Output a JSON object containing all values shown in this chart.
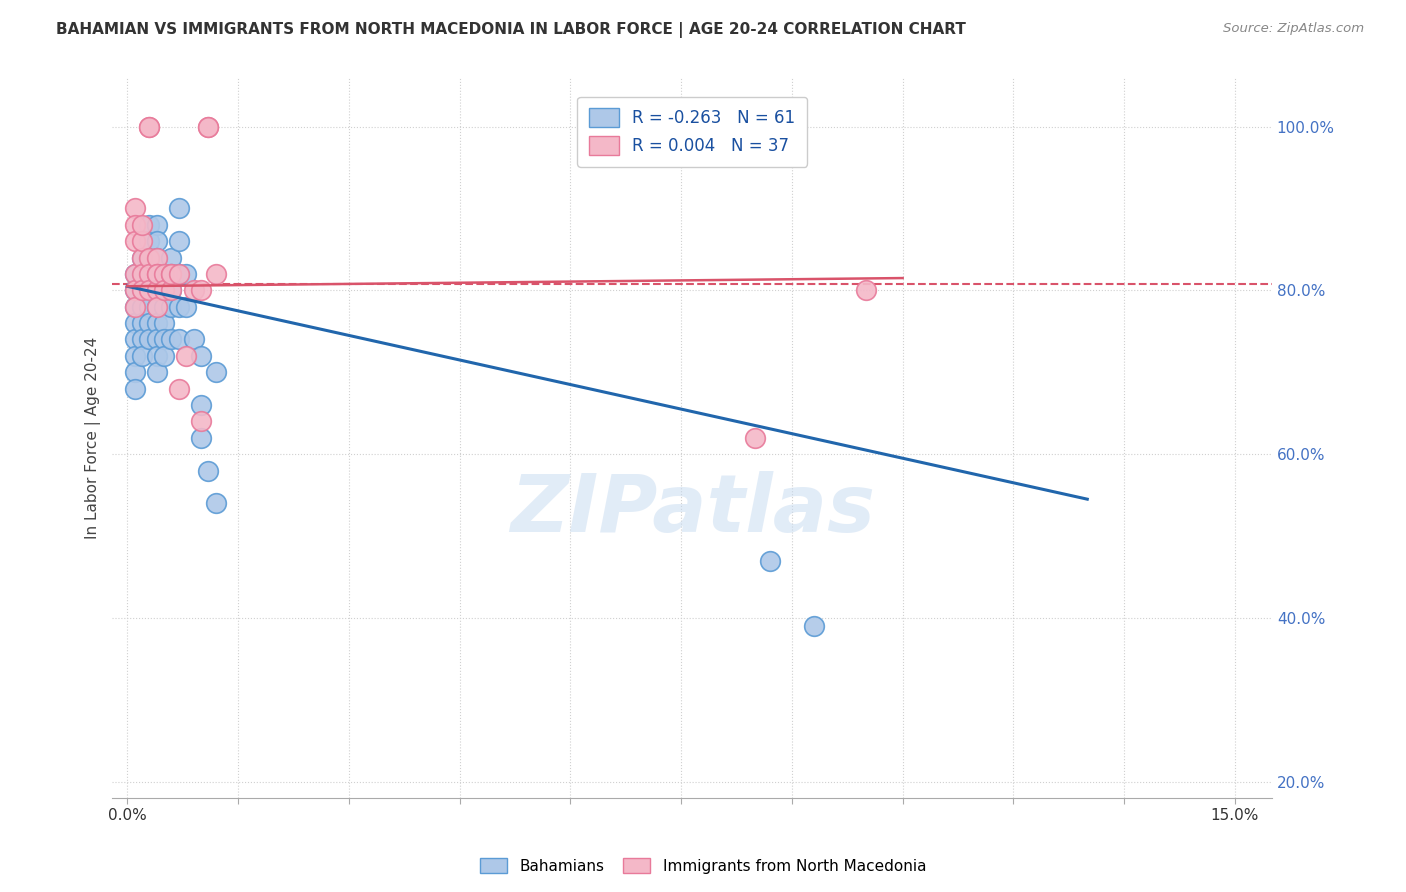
{
  "title": "BAHAMIAN VS IMMIGRANTS FROM NORTH MACEDONIA IN LABOR FORCE | AGE 20-24 CORRELATION CHART",
  "source": "Source: ZipAtlas.com",
  "xlabel_vals": [
    0.0,
    0.015,
    0.03,
    0.045,
    0.06,
    0.075,
    0.09,
    0.105,
    0.12,
    0.135,
    0.15
  ],
  "xlabel_show": [
    0.0,
    0.15
  ],
  "ylabel": "In Labor Force | Age 20-24",
  "ylabel_vals": [
    0.2,
    0.4,
    0.6,
    0.8,
    1.0
  ],
  "xlim": [
    -0.002,
    0.155
  ],
  "ylim": [
    0.18,
    1.06
  ],
  "bahamian_R": -0.263,
  "bahamian_N": 61,
  "macedonia_R": 0.004,
  "macedonia_N": 37,
  "blue_color": "#aec8e8",
  "blue_edge_color": "#5b9bd5",
  "pink_color": "#f4b8c8",
  "pink_edge_color": "#e87a9a",
  "blue_line_color": "#2166ac",
  "pink_line_color": "#d9536a",
  "watermark": "ZIPatlas",
  "bahamian_dots": [
    [
      0.001,
      0.82
    ],
    [
      0.001,
      0.8
    ],
    [
      0.001,
      0.78
    ],
    [
      0.001,
      0.76
    ],
    [
      0.001,
      0.74
    ],
    [
      0.001,
      0.72
    ],
    [
      0.001,
      0.7
    ],
    [
      0.001,
      0.68
    ],
    [
      0.002,
      0.84
    ],
    [
      0.002,
      0.82
    ],
    [
      0.002,
      0.8
    ],
    [
      0.002,
      0.78
    ],
    [
      0.002,
      0.76
    ],
    [
      0.002,
      0.74
    ],
    [
      0.002,
      0.72
    ],
    [
      0.003,
      0.88
    ],
    [
      0.003,
      0.86
    ],
    [
      0.003,
      0.84
    ],
    [
      0.003,
      0.82
    ],
    [
      0.003,
      0.8
    ],
    [
      0.003,
      0.78
    ],
    [
      0.003,
      0.76
    ],
    [
      0.003,
      0.74
    ],
    [
      0.004,
      0.88
    ],
    [
      0.004,
      0.86
    ],
    [
      0.004,
      0.84
    ],
    [
      0.004,
      0.82
    ],
    [
      0.004,
      0.8
    ],
    [
      0.004,
      0.78
    ],
    [
      0.004,
      0.76
    ],
    [
      0.004,
      0.74
    ],
    [
      0.004,
      0.72
    ],
    [
      0.004,
      0.7
    ],
    [
      0.005,
      0.82
    ],
    [
      0.005,
      0.8
    ],
    [
      0.005,
      0.78
    ],
    [
      0.005,
      0.76
    ],
    [
      0.005,
      0.74
    ],
    [
      0.005,
      0.72
    ],
    [
      0.006,
      0.84
    ],
    [
      0.006,
      0.82
    ],
    [
      0.006,
      0.8
    ],
    [
      0.006,
      0.78
    ],
    [
      0.006,
      0.74
    ],
    [
      0.007,
      0.9
    ],
    [
      0.007,
      0.86
    ],
    [
      0.007,
      0.82
    ],
    [
      0.007,
      0.78
    ],
    [
      0.007,
      0.74
    ],
    [
      0.008,
      0.82
    ],
    [
      0.008,
      0.78
    ],
    [
      0.009,
      0.74
    ],
    [
      0.01,
      0.72
    ],
    [
      0.01,
      0.66
    ],
    [
      0.01,
      0.62
    ],
    [
      0.011,
      0.58
    ],
    [
      0.012,
      0.7
    ],
    [
      0.012,
      0.54
    ],
    [
      0.075,
      1.0
    ],
    [
      0.087,
      0.47
    ],
    [
      0.093,
      0.39
    ]
  ],
  "macedonia_dots": [
    [
      0.001,
      0.82
    ],
    [
      0.001,
      0.8
    ],
    [
      0.001,
      0.78
    ],
    [
      0.001,
      0.9
    ],
    [
      0.001,
      0.88
    ],
    [
      0.001,
      0.86
    ],
    [
      0.002,
      0.84
    ],
    [
      0.002,
      0.82
    ],
    [
      0.002,
      0.8
    ],
    [
      0.002,
      0.86
    ],
    [
      0.002,
      0.88
    ],
    [
      0.003,
      0.84
    ],
    [
      0.003,
      0.82
    ],
    [
      0.003,
      0.8
    ],
    [
      0.003,
      1.0
    ],
    [
      0.003,
      1.0
    ],
    [
      0.004,
      0.84
    ],
    [
      0.004,
      0.82
    ],
    [
      0.004,
      0.8
    ],
    [
      0.004,
      0.78
    ],
    [
      0.004,
      0.82
    ],
    [
      0.005,
      0.82
    ],
    [
      0.005,
      0.8
    ],
    [
      0.006,
      0.82
    ],
    [
      0.006,
      0.8
    ],
    [
      0.006,
      0.82
    ],
    [
      0.007,
      0.82
    ],
    [
      0.007,
      0.68
    ],
    [
      0.008,
      0.72
    ],
    [
      0.009,
      0.8
    ],
    [
      0.01,
      0.8
    ],
    [
      0.01,
      0.64
    ],
    [
      0.011,
      1.0
    ],
    [
      0.011,
      1.0
    ],
    [
      0.012,
      0.82
    ],
    [
      0.085,
      0.62
    ],
    [
      0.1,
      0.8
    ]
  ],
  "blue_trendline_x": [
    0.0,
    0.13
  ],
  "blue_trendline_y": [
    0.805,
    0.545
  ],
  "pink_trendline_x": [
    0.0,
    0.105
  ],
  "pink_trendline_y": [
    0.805,
    0.815
  ],
  "pink_hline_y": 0.808,
  "grid_color": "#d0d0d0",
  "bg_color": "#ffffff",
  "tick_color": "#4472c4",
  "right_ytick_vals": [
    0.4,
    0.6,
    0.8,
    1.0
  ]
}
